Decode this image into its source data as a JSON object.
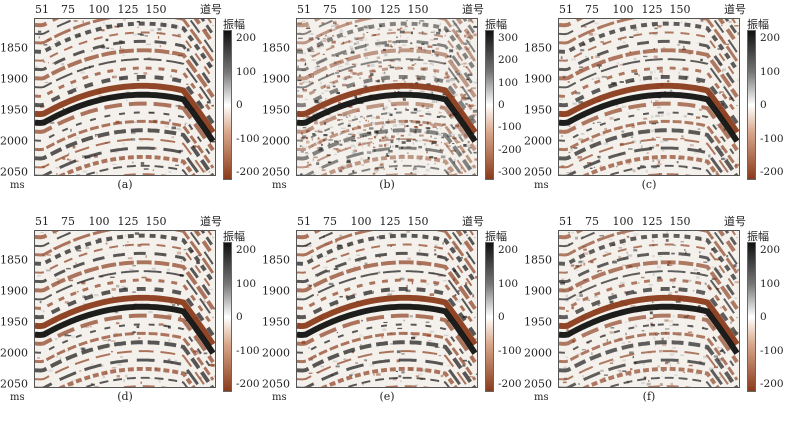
{
  "panels": [
    {
      "caption": "(a)",
      "cbar_ticks": [
        "200",
        "100",
        "0",
        "-100",
        "-200"
      ],
      "noise": 0.18
    },
    {
      "caption": "(b)",
      "cbar_ticks": [
        "300",
        "200",
        "100",
        "0",
        "-100",
        "-200",
        "-300"
      ],
      "noise": 0.85
    },
    {
      "caption": "(c)",
      "cbar_ticks": [
        "200",
        "100",
        "0",
        "-100",
        "-200"
      ],
      "noise": 0.25
    },
    {
      "caption": "(d)",
      "cbar_ticks": [
        "200",
        "100",
        "0",
        "-100",
        "-200"
      ],
      "noise": 0.18
    },
    {
      "caption": "(e)",
      "cbar_ticks": [
        "200",
        "100",
        "0",
        "-100",
        "-200"
      ],
      "noise": 0.18
    },
    {
      "caption": "(f)",
      "cbar_ticks": [
        "200",
        "100",
        "0",
        "-100",
        "-200"
      ],
      "noise": 0.3
    }
  ],
  "x_ticks": [
    "51",
    "75",
    "100",
    "125",
    "150"
  ],
  "x_unit": "道号",
  "y_ticks": [
    "1850",
    "1900",
    "1950",
    "2000",
    "2050"
  ],
  "y_unit": "ms",
  "amplitude_label": "振幅",
  "colors": {
    "positive": "#111111",
    "negative": "#8a3b1c",
    "zero": "#ffffff"
  }
}
